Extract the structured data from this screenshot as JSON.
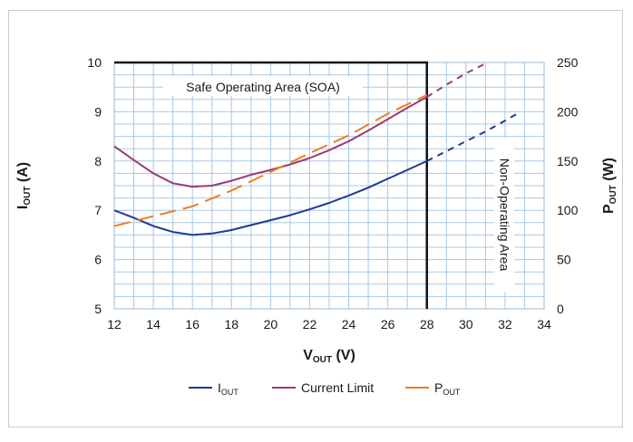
{
  "chart_data": {
    "type": "line",
    "title": "",
    "xlabel": {
      "main": "V",
      "sub": "OUT",
      "unit": " (V)"
    },
    "ylabel_left": {
      "main": "I",
      "sub": "OUT",
      "unit": " (A)"
    },
    "ylabel_right": {
      "main": "P",
      "sub": "OUT",
      "unit": " (W)"
    },
    "xlim": [
      12,
      34
    ],
    "ylim_left": [
      5,
      10
    ],
    "ylim_right": [
      0,
      250
    ],
    "x_ticks": [
      "12",
      "14",
      "16",
      "18",
      "20",
      "22",
      "24",
      "26",
      "28",
      "30",
      "32",
      "34"
    ],
    "y_left_ticks": [
      "5",
      "6",
      "7",
      "8",
      "9",
      "10"
    ],
    "y_right_ticks": [
      "0",
      "50",
      "100",
      "150",
      "200",
      "250"
    ],
    "grid": true,
    "soa_limit_x": 28,
    "annotations": {
      "safe_area": "Safe Operating Area (SOA)",
      "non_operating": "Non-Operating Area"
    },
    "legend_position": "bottom",
    "series": [
      {
        "key": "iout",
        "legend_main": "I",
        "legend_sub": "OUT",
        "axis": "left",
        "color": "#1f3a93",
        "x": [
          12,
          13,
          14,
          15,
          16,
          17,
          18,
          19,
          20,
          21,
          22,
          23,
          24,
          25,
          26,
          27,
          28
        ],
        "y": [
          7.0,
          6.85,
          6.68,
          6.56,
          6.5,
          6.53,
          6.6,
          6.7,
          6.8,
          6.9,
          7.02,
          7.15,
          7.3,
          7.46,
          7.64,
          7.82,
          8.0
        ],
        "x_ext": [
          28,
          29,
          30,
          31,
          32,
          32.8
        ],
        "y_ext": [
          8.0,
          8.2,
          8.4,
          8.6,
          8.82,
          9.0
        ]
      },
      {
        "key": "climit",
        "legend_main": "Current Limit",
        "legend_sub": "",
        "axis": "left",
        "color": "#9b3a78",
        "x": [
          12,
          13,
          14,
          15,
          16,
          17,
          18,
          19,
          20,
          21,
          22,
          23,
          24,
          25,
          26,
          27,
          28
        ],
        "y": [
          8.3,
          8.02,
          7.75,
          7.55,
          7.48,
          7.5,
          7.6,
          7.72,
          7.82,
          7.93,
          8.06,
          8.22,
          8.4,
          8.62,
          8.85,
          9.08,
          9.3
        ],
        "x_ext": [
          28,
          29,
          30,
          31
        ],
        "y_ext": [
          9.3,
          9.55,
          9.78,
          9.98
        ]
      },
      {
        "key": "pout",
        "legend_main": "P",
        "legend_sub": "OUT",
        "axis": "right",
        "color": "#f07d1e",
        "dashed": true,
        "x": [
          12,
          14,
          16,
          18,
          20,
          22,
          24,
          26,
          28
        ],
        "y": [
          84,
          94,
          104,
          120,
          139,
          158,
          176,
          198,
          217
        ]
      }
    ]
  }
}
